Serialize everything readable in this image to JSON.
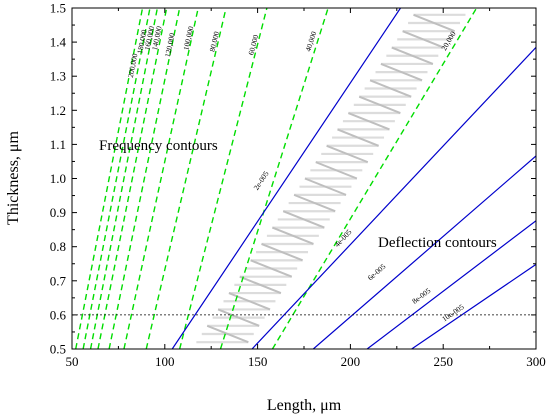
{
  "chart_data": {
    "type": "line",
    "xlabel": "Length, μm",
    "ylabel": "Thickness, μm",
    "xlim": [
      50,
      300
    ],
    "ylim": [
      0.5,
      1.5
    ],
    "xticks": [
      50,
      100,
      150,
      200,
      250,
      300
    ],
    "yticks": [
      0.5,
      0.6,
      0.7,
      0.8,
      0.9,
      1.0,
      1.1,
      1.2,
      1.3,
      1.4,
      1.5
    ],
    "xtick_labels": [
      "50",
      "100",
      "150",
      "200",
      "250",
      "300"
    ],
    "ytick_labels": [
      "0.5",
      "0.6",
      "0.7",
      "0.8",
      "0.9",
      "1.0",
      "1.1",
      "1.2",
      "1.3",
      "1.4",
      "1.5"
    ],
    "grid": false,
    "annotations": {
      "frequency": "Frequency contours",
      "deflection": "Deflection contours"
    },
    "frequency_contours": [
      {
        "label": "200,000",
        "x_at_y0_5": 52,
        "x_at_y1_5": 88,
        "label_pos": [
          84,
          1.33
        ]
      },
      {
        "label": "180,000",
        "x_at_y0_5": 56,
        "x_at_y1_5": 92,
        "label_pos": [
          89,
          1.4
        ]
      },
      {
        "label": "160,000",
        "x_at_y0_5": 60,
        "x_at_y1_5": 96,
        "label_pos": [
          93,
          1.41
        ]
      },
      {
        "label": "140,000",
        "x_at_y0_5": 64,
        "x_at_y1_5": 101,
        "label_pos": [
          97,
          1.41
        ]
      },
      {
        "label": "120,000",
        "x_at_y0_5": 70,
        "x_at_y1_5": 108,
        "label_pos": [
          104,
          1.39
        ]
      },
      {
        "label": "100,000",
        "x_at_y0_5": 78,
        "x_at_y1_5": 118,
        "label_pos": [
          114,
          1.41
        ]
      },
      {
        "label": "80,000",
        "x_at_y0_5": 90,
        "x_at_y1_5": 133,
        "label_pos": [
          128,
          1.4
        ]
      },
      {
        "label": "60,000",
        "x_at_y0_5": 108,
        "x_at_y1_5": 155,
        "label_pos": [
          149,
          1.39
        ]
      },
      {
        "label": "40,000",
        "x_at_y0_5": 130,
        "x_at_y1_5": 188,
        "label_pos": [
          180,
          1.4
        ]
      },
      {
        "label": "20,000",
        "x_at_y0_5": 158,
        "x_at_y1_5": 268,
        "label_pos": [
          254,
          1.4
        ]
      }
    ],
    "deflection_contours": [
      {
        "label": "2e-005",
        "x_at_y0_5": 104,
        "x_at_y1_5": 227,
        "label_pos": [
          153,
          0.99
        ]
      },
      {
        "label": "4e-005",
        "x_at_y0_5": 147,
        "x_at_y1_5": 320,
        "label_pos": [
          197,
          0.82
        ]
      },
      {
        "label": "6e-005",
        "x_at_y0_5": 180,
        "x_at_y1_5": 392,
        "label_pos": [
          215,
          0.72
        ]
      },
      {
        "label": "8e-005",
        "x_at_y0_5": 209,
        "x_at_y1_5": 451,
        "label_pos": [
          239,
          0.65
        ]
      },
      {
        "label": "10e-005",
        "x_at_y0_5": 233,
        "x_at_y1_5": 503,
        "label_pos": [
          256,
          0.6
        ]
      }
    ],
    "reference_line": {
      "y": 0.6,
      "style": "dotted"
    },
    "feasible_region": {
      "shape": "hatched parallelogram",
      "vertices": [
        [
          117,
          0.52
        ],
        [
          145,
          0.52
        ],
        [
          262,
          1.48
        ],
        [
          234,
          1.48
        ]
      ]
    },
    "colors": {
      "frequency": "#00dd00",
      "deflection": "#0000cc",
      "region": "#bfbfbf",
      "reference": "#000000"
    }
  }
}
